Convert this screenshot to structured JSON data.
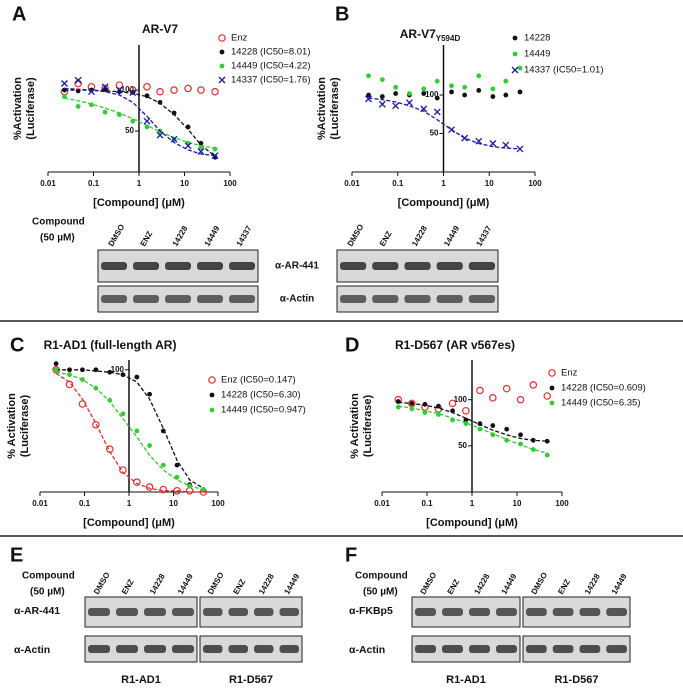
{
  "chart_data": [
    {
      "type": "scatter",
      "panel": "A",
      "title": "AR-V7",
      "ylabel": [
        "%Activation",
        "(Luciferase)"
      ],
      "xlabel": "[Compound] (μM)",
      "log_x": true,
      "yaxis_at": 1,
      "x": [
        0.023,
        0.046,
        0.09,
        0.18,
        0.37,
        0.73,
        1.5,
        2.9,
        5.9,
        12,
        23,
        47
      ],
      "xlim": [
        0.01,
        100
      ],
      "xticks": [
        0.01,
        0.1,
        1,
        10,
        100
      ],
      "ylim": [
        0,
        155
      ],
      "yticks": [
        50,
        100
      ],
      "series": [
        {
          "name": "Enz",
          "color": "#e03030",
          "marker": "circle-open",
          "values": [
            98,
            108,
            104,
            102,
            106,
            100,
            104,
            98,
            100,
            102,
            100,
            98
          ]
        },
        {
          "name": "14228 (IC50=8.01)",
          "color": "#111111",
          "marker": "dot",
          "values": [
            100,
            99,
            100,
            101,
            98,
            97,
            93,
            85,
            72,
            55,
            35,
            18
          ],
          "fit": [
            100,
            100,
            100,
            99,
            98,
            96,
            92,
            84,
            70,
            52,
            33,
            19
          ]
        },
        {
          "name": "14449 (IC50=4.22)",
          "color": "#33cc33",
          "marker": "dot",
          "values": [
            92,
            80,
            82,
            73,
            70,
            62,
            55,
            50,
            40,
            35,
            30,
            28
          ],
          "fit": [
            90,
            87,
            83,
            78,
            72,
            65,
            57,
            49,
            42,
            36,
            32,
            29
          ]
        },
        {
          "name": "14337 (IC50=1.76)",
          "color": "#1a1aa0",
          "marker": "x",
          "values": [
            108,
            112,
            98,
            104,
            100,
            97,
            62,
            45,
            40,
            32,
            25,
            20
          ],
          "fit": [
            102,
            101,
            100,
            98,
            94,
            85,
            68,
            50,
            36,
            27,
            22,
            20
          ]
        }
      ]
    },
    {
      "type": "scatter",
      "panel": "B",
      "title": "AR-V7",
      "title_sub": "Y594D",
      "ylabel": [
        "%Activation",
        "(Luciferase)"
      ],
      "xlabel": "[Compound] (μM)",
      "log_x": true,
      "yaxis_at": 1,
      "x": [
        0.023,
        0.046,
        0.09,
        0.18,
        0.37,
        0.73,
        1.5,
        2.9,
        5.9,
        12,
        23,
        47
      ],
      "xlim": [
        0.01,
        100
      ],
      "xticks": [
        0.01,
        0.1,
        1,
        10,
        100
      ],
      "ylim": [
        0,
        165
      ],
      "yticks": [
        50,
        100
      ],
      "series": [
        {
          "name": "14228",
          "color": "#111111",
          "marker": "dot",
          "values": [
            100,
            98,
            102,
            100,
            102,
            96,
            104,
            100,
            106,
            98,
            100,
            104
          ]
        },
        {
          "name": "14449",
          "color": "#33cc33",
          "marker": "dot",
          "values": [
            125,
            120,
            110,
            102,
            108,
            118,
            112,
            110,
            125,
            108,
            118,
            135
          ]
        },
        {
          "name": "14337 (IC50=1.01)",
          "color": "#1a1aa0",
          "marker": "x",
          "values": [
            95,
            88,
            86,
            90,
            82,
            78,
            55,
            44,
            40,
            37,
            35,
            30
          ],
          "fit": [
            96,
            94,
            91,
            86,
            79,
            68,
            55,
            44,
            37,
            33,
            31,
            30
          ]
        }
      ]
    },
    {
      "type": "scatter",
      "panel": "C",
      "title": "R1-AD1 (full-length AR)",
      "ylabel": [
        "% Activation",
        "(Luciferase)"
      ],
      "xlabel": "[Compound] (μM)",
      "log_x": true,
      "yaxis_at": 1,
      "x": [
        0.023,
        0.046,
        0.09,
        0.18,
        0.37,
        0.73,
        1.5,
        2.9,
        5.9,
        12,
        23,
        47
      ],
      "xlim": [
        0.01,
        100
      ],
      "xticks": [
        0.01,
        0.1,
        1,
        10,
        100
      ],
      "ylim": [
        0,
        108
      ],
      "yticks": [
        100
      ],
      "series": [
        {
          "name": "Enz (IC50=0.147)",
          "color": "#e03030",
          "marker": "circle-open",
          "values": [
            100,
            88,
            72,
            55,
            35,
            18,
            8,
            4,
            2,
            1,
            1,
            0
          ],
          "fit": [
            97,
            90,
            76,
            56,
            33,
            16,
            7,
            3,
            1,
            1,
            0,
            0
          ]
        },
        {
          "name": "14228 (IC50=6.30)",
          "color": "#111111",
          "marker": "dot",
          "values": [
            105,
            100,
            100,
            100,
            98,
            96,
            94,
            80,
            50,
            22,
            6,
            2
          ],
          "fit": [
            100,
            100,
            100,
            99,
            98,
            96,
            90,
            76,
            52,
            26,
            10,
            3
          ]
        },
        {
          "name": "14449  (IC50=0.947)",
          "color": "#33cc33",
          "marker": "dot",
          "values": [
            100,
            96,
            92,
            85,
            75,
            64,
            50,
            38,
            22,
            12,
            5,
            2
          ],
          "fit": [
            98,
            96,
            92,
            85,
            74,
            60,
            45,
            30,
            18,
            10,
            5,
            2
          ]
        }
      ]
    },
    {
      "type": "scatter",
      "panel": "D",
      "title": "R1-D567 (AR v567es)",
      "ylabel": [
        "% Activation",
        "(Luciferase)"
      ],
      "xlabel": "[Compound] (μM)",
      "log_x": true,
      "yaxis_at": 1,
      "x": [
        0.023,
        0.046,
        0.09,
        0.18,
        0.37,
        0.73,
        1.5,
        2.9,
        5.9,
        12,
        23,
        47
      ],
      "xlim": [
        0.01,
        100
      ],
      "xticks": [
        0.01,
        0.1,
        1,
        10,
        100
      ],
      "ylim": [
        0,
        143
      ],
      "yticks": [
        50,
        100
      ],
      "series": [
        {
          "name": "Enz",
          "color": "#e03030",
          "marker": "circle-open",
          "values": [
            100,
            96,
            92,
            90,
            96,
            88,
            110,
            102,
            112,
            100,
            116,
            104
          ]
        },
        {
          "name": "14228 (IC50=0.609)",
          "color": "#111111",
          "marker": "dot",
          "values": [
            98,
            96,
            95,
            93,
            88,
            78,
            74,
            72,
            68,
            62,
            56,
            55
          ],
          "fit": [
            97,
            96,
            94,
            91,
            86,
            80,
            73,
            67,
            62,
            58,
            56,
            55
          ]
        },
        {
          "name": "14449 (IC50=6.35)",
          "color": "#33cc33",
          "marker": "dot",
          "values": [
            92,
            90,
            86,
            84,
            78,
            74,
            68,
            62,
            56,
            52,
            46,
            40
          ],
          "fit": [
            93,
            91,
            88,
            85,
            80,
            75,
            69,
            63,
            57,
            51,
            46,
            42
          ]
        }
      ]
    }
  ],
  "blot_top": {
    "compound_label": [
      "Compound",
      "(50 µM)"
    ],
    "lanes_left": [
      "DMSO",
      "ENZ",
      "14228",
      "14449",
      "14337"
    ],
    "lanes_right": [
      "DMSO",
      "ENZ",
      "14228",
      "14449",
      "14337"
    ],
    "rows": [
      "α-AR-441",
      "α-Actin"
    ]
  },
  "blot_e": {
    "panel": "E",
    "compound_label": [
      "Compound",
      "(50 µM)"
    ],
    "rows": [
      "α-AR-441",
      "α-Actin"
    ],
    "groups": [
      {
        "name": "R1-AD1",
        "lanes": [
          "DMSO",
          "ENZ",
          "14228",
          "14449"
        ]
      },
      {
        "name": "R1-D567",
        "lanes": [
          "DMSO",
          "ENZ",
          "14228",
          "14449"
        ]
      }
    ]
  },
  "blot_f": {
    "panel": "F",
    "compound_label": [
      "Compound",
      "(50 µM)"
    ],
    "rows": [
      "α-FKBp5",
      "α-Actin"
    ],
    "groups": [
      {
        "name": "R1-AD1",
        "lanes": [
          "DMSO",
          "ENZ",
          "14228",
          "14449"
        ]
      },
      {
        "name": "R1-D567",
        "lanes": [
          "DMSO",
          "ENZ",
          "14228",
          "14449"
        ]
      }
    ]
  }
}
